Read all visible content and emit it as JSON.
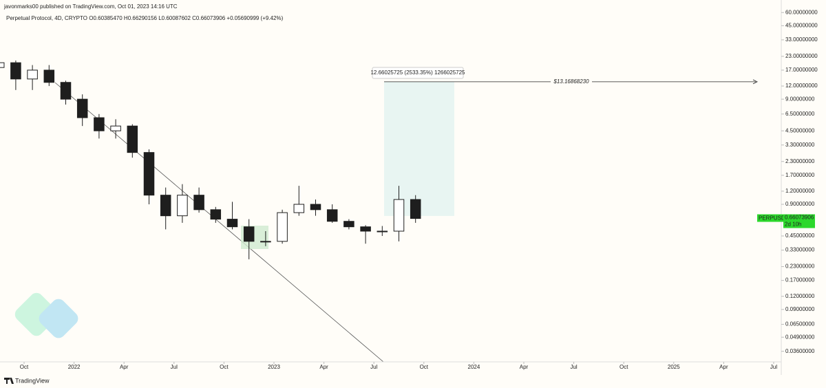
{
  "chart_data": {
    "type": "candlestick",
    "publisher": "javonmarks00 published on TradingView.com, Oct 01, 2023 14:16 UTC",
    "legend": "Perpetual Protocol, 4D, CRYPTO",
    "ohlc_text": "O0.60385470 H0.66290156 L0.60087602 C0.66073906 +0.05690999 (+9.42%)",
    "symbol": "PERPUSD",
    "last_price": 0.66073906,
    "countdown": "2d 10h",
    "measure_label": "12.66025725 (2533.35%) 1266025725",
    "target_value": 13.1686823,
    "target_label": "$13.16868230",
    "footer": "TradingView",
    "log_scale": true,
    "grid": false,
    "up_color": "#ffffff",
    "down_color": "#1e1e1e",
    "x": [
      "2021-08",
      "2021-09",
      "2021-10",
      "2021-11",
      "2021-12",
      "2022-01",
      "2022-02",
      "2022-03",
      "2022-04",
      "2022-05",
      "2022-06",
      "2022-07",
      "2022-08",
      "2022-09",
      "2022-10",
      "2022-11",
      "2022-12",
      "2023-01",
      "2023-02",
      "2023-03",
      "2023-04",
      "2023-05",
      "2023-06",
      "2023-07",
      "2023-08",
      "2023-09"
    ],
    "open": [
      18,
      20,
      14,
      17,
      13,
      9,
      6,
      4.5,
      5,
      2.8,
      1.1,
      0.7,
      1.1,
      0.8,
      0.65,
      0.55,
      0.4,
      0.4,
      0.75,
      0.9,
      0.8,
      0.62,
      0.55,
      0.5,
      0.5,
      1.0
    ],
    "high": [
      22,
      21,
      19,
      19,
      13.5,
      10,
      6.5,
      5.8,
      5.2,
      3,
      1.3,
      1.4,
      1.3,
      0.85,
      0.95,
      0.65,
      0.5,
      0.8,
      1.35,
      1.0,
      0.9,
      0.65,
      0.57,
      0.56,
      1.35,
      1.1
    ],
    "low": [
      15,
      11,
      11,
      12,
      8,
      5,
      3.8,
      3.8,
      2.5,
      0.9,
      0.52,
      0.6,
      0.75,
      0.6,
      0.52,
      0.27,
      0.36,
      0.38,
      0.7,
      0.7,
      0.6,
      0.52,
      0.38,
      0.45,
      0.4,
      0.6
    ],
    "close": [
      20,
      14,
      17,
      13,
      9,
      6,
      4.5,
      5,
      2.8,
      1.1,
      0.7,
      1.1,
      0.8,
      0.65,
      0.55,
      0.4,
      0.4,
      0.75,
      0.9,
      0.8,
      0.62,
      0.55,
      0.5,
      0.5,
      1.0,
      0.66
    ],
    "xlim": [
      "2021-08",
      "2025-08"
    ],
    "xticks": [
      {
        "value": "2021-10",
        "label": "Oct"
      },
      {
        "value": "2022-01",
        "label": "2022"
      },
      {
        "value": "2022-04",
        "label": "Apr"
      },
      {
        "value": "2022-07",
        "label": "Jul"
      },
      {
        "value": "2022-10",
        "label": "Oct"
      },
      {
        "value": "2023-01",
        "label": "2023"
      },
      {
        "value": "2023-04",
        "label": "Apr"
      },
      {
        "value": "2023-07",
        "label": "Jul"
      },
      {
        "value": "2023-10",
        "label": "Oct"
      },
      {
        "value": "2024-01",
        "label": "2024"
      },
      {
        "value": "2024-04",
        "label": "Apr"
      },
      {
        "value": "2024-07",
        "label": "Jul"
      },
      {
        "value": "2024-10",
        "label": "Oct"
      },
      {
        "value": "2025-01",
        "label": "2025"
      },
      {
        "value": "2025-04",
        "label": "Apr"
      },
      {
        "value": "2025-07",
        "label": "Jul"
      }
    ],
    "ylim": [
      0.029,
      70
    ],
    "yticks": [
      {
        "value": 60,
        "label": "60.00000000"
      },
      {
        "value": 45,
        "label": "45.00000000"
      },
      {
        "value": 33,
        "label": "33.00000000"
      },
      {
        "value": 23,
        "label": "23.00000000"
      },
      {
        "value": 17,
        "label": "17.00000000"
      },
      {
        "value": 12,
        "label": "12.00000000"
      },
      {
        "value": 9,
        "label": "9.00000000"
      },
      {
        "value": 6.5,
        "label": "6.50000000"
      },
      {
        "value": 4.5,
        "label": "4.50000000"
      },
      {
        "value": 3.3,
        "label": "3.30000000"
      },
      {
        "value": 2.3,
        "label": "2.30000000"
      },
      {
        "value": 1.7,
        "label": "1.70000000"
      },
      {
        "value": 1.2,
        "label": "1.20000000"
      },
      {
        "value": 0.9,
        "label": "0.90000000"
      },
      {
        "value": 0.65,
        "label": "0.65000000"
      },
      {
        "value": 0.45,
        "label": "0.45000000"
      },
      {
        "value": 0.33,
        "label": "0.33000000"
      },
      {
        "value": 0.23,
        "label": "0.23000000"
      },
      {
        "value": 0.17,
        "label": "0.17000000"
      },
      {
        "value": 0.12,
        "label": "0.12000000"
      },
      {
        "value": 0.09,
        "label": "0.09000000"
      },
      {
        "value": 0.065,
        "label": "0.06500000"
      },
      {
        "value": 0.049,
        "label": "0.04900000"
      },
      {
        "value": 0.036,
        "label": "0.03600000"
      }
    ]
  }
}
